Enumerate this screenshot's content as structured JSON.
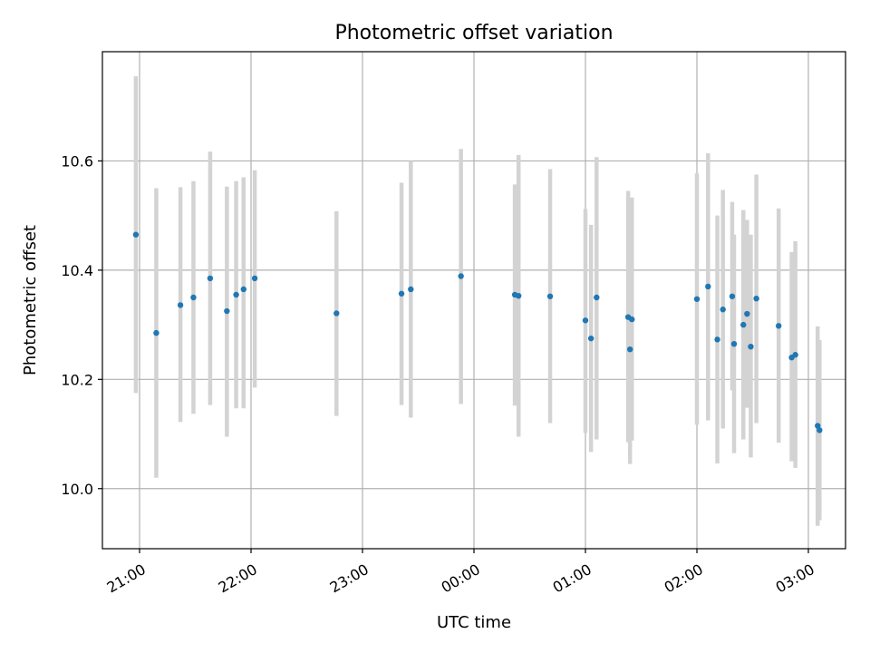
{
  "chart_data": {
    "type": "scatter",
    "title": "Photometric offset variation",
    "xlabel": "UTC time",
    "ylabel": "Photometric offset",
    "x_is_time": true,
    "xlim": [
      "20:40",
      "03:20"
    ],
    "ylim": [
      9.89,
      10.8
    ],
    "x_ticks": [
      "21:00",
      "22:00",
      "23:00",
      "00:00",
      "01:00",
      "02:00",
      "03:00"
    ],
    "y_ticks": [
      10.0,
      10.2,
      10.4,
      10.6
    ],
    "y_tick_labels": [
      "10.0",
      "10.2",
      "10.4",
      "10.6"
    ],
    "grid": true,
    "legend": "none",
    "series": [
      {
        "marker_color": "#1f77b4",
        "errorbar_color": "#d3d3d3",
        "points": [
          {
            "t": "20:58",
            "y": 10.465,
            "lo": 10.175,
            "hi": 10.755
          },
          {
            "t": "21:09",
            "y": 10.285,
            "lo": 10.02,
            "hi": 10.55
          },
          {
            "t": "21:22",
            "y": 10.336,
            "lo": 10.122,
            "hi": 10.552
          },
          {
            "t": "21:29",
            "y": 10.35,
            "lo": 10.137,
            "hi": 10.563
          },
          {
            "t": "21:38",
            "y": 10.385,
            "lo": 10.153,
            "hi": 10.617
          },
          {
            "t": "21:47",
            "y": 10.325,
            "lo": 10.095,
            "hi": 10.553
          },
          {
            "t": "21:52",
            "y": 10.355,
            "lo": 10.147,
            "hi": 10.563
          },
          {
            "t": "21:56",
            "y": 10.365,
            "lo": 10.147,
            "hi": 10.57
          },
          {
            "t": "22:02",
            "y": 10.385,
            "lo": 10.185,
            "hi": 10.583
          },
          {
            "t": "22:46",
            "y": 10.321,
            "lo": 10.133,
            "hi": 10.508
          },
          {
            "t": "23:21",
            "y": 10.357,
            "lo": 10.153,
            "hi": 10.56
          },
          {
            "t": "23:26",
            "y": 10.365,
            "lo": 10.13,
            "hi": 10.6
          },
          {
            "t": "23:53",
            "y": 10.389,
            "lo": 10.155,
            "hi": 10.622
          },
          {
            "t": "00:22",
            "y": 10.355,
            "lo": 10.152,
            "hi": 10.557
          },
          {
            "t": "00:24",
            "y": 10.353,
            "lo": 10.095,
            "hi": 10.611
          },
          {
            "t": "00:41",
            "y": 10.352,
            "lo": 10.12,
            "hi": 10.585
          },
          {
            "t": "01:00",
            "y": 10.308,
            "lo": 10.102,
            "hi": 10.512
          },
          {
            "t": "01:03",
            "y": 10.275,
            "lo": 10.067,
            "hi": 10.483
          },
          {
            "t": "01:06",
            "y": 10.35,
            "lo": 10.09,
            "hi": 10.607
          },
          {
            "t": "01:23",
            "y": 10.314,
            "lo": 10.085,
            "hi": 10.545
          },
          {
            "t": "01:24",
            "y": 10.255,
            "lo": 10.045,
            "hi": 10.465
          },
          {
            "t": "01:25",
            "y": 10.31,
            "lo": 10.088,
            "hi": 10.533
          },
          {
            "t": "02:00",
            "y": 10.347,
            "lo": 10.117,
            "hi": 10.577
          },
          {
            "t": "02:06",
            "y": 10.37,
            "lo": 10.125,
            "hi": 10.614
          },
          {
            "t": "02:11",
            "y": 10.273,
            "lo": 10.046,
            "hi": 10.5
          },
          {
            "t": "02:14",
            "y": 10.328,
            "lo": 10.11,
            "hi": 10.547
          },
          {
            "t": "02:19",
            "y": 10.352,
            "lo": 10.18,
            "hi": 10.525
          },
          {
            "t": "02:20",
            "y": 10.265,
            "lo": 10.065,
            "hi": 10.465
          },
          {
            "t": "02:25",
            "y": 10.3,
            "lo": 10.09,
            "hi": 10.51
          },
          {
            "t": "02:27",
            "y": 10.32,
            "lo": 10.148,
            "hi": 10.492
          },
          {
            "t": "02:29",
            "y": 10.26,
            "lo": 10.057,
            "hi": 10.465
          },
          {
            "t": "02:32",
            "y": 10.348,
            "lo": 10.12,
            "hi": 10.575
          },
          {
            "t": "02:44",
            "y": 10.298,
            "lo": 10.084,
            "hi": 10.513
          },
          {
            "t": "02:51",
            "y": 10.24,
            "lo": 10.05,
            "hi": 10.433
          },
          {
            "t": "02:53",
            "y": 10.245,
            "lo": 10.038,
            "hi": 10.453
          },
          {
            "t": "03:05",
            "y": 10.115,
            "lo": 9.932,
            "hi": 10.297
          },
          {
            "t": "03:06",
            "y": 10.107,
            "lo": 9.942,
            "hi": 10.272
          }
        ]
      }
    ]
  }
}
